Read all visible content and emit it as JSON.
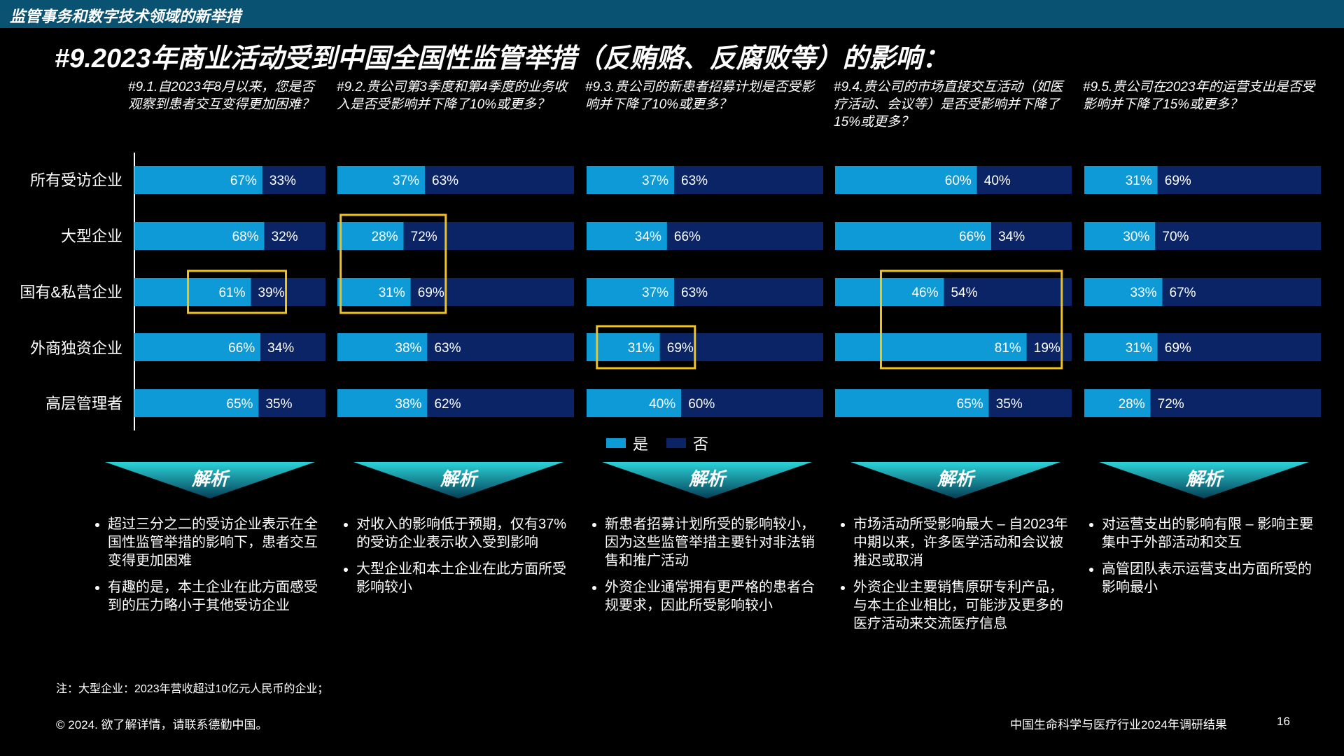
{
  "header": {
    "section_label": "监管事务和数字技术领域的新举措"
  },
  "page_title": "#9.2023年商业活动受到中国全国性监管举措（反贿赂、反腐败等）的影响：",
  "colors": {
    "yes": "#0e9ad7",
    "no": "#0b2466",
    "highlight": "#f0c21a",
    "topbar": "#0a5271"
  },
  "legend": {
    "yes": "是",
    "no": "否"
  },
  "chart_data": {
    "type": "bar",
    "stacked": true,
    "orientation": "horizontal",
    "categories": [
      "所有受访企业",
      "大型企业",
      "国有&私营企业",
      "外商独资企业",
      "高层管理者"
    ],
    "panels": [
      {
        "title": "#9.1.自2023年8月以来，您是否观察到患者交互变得更加困难？",
        "series": [
          {
            "name": "是",
            "values": [
              67,
              68,
              61,
              66,
              65
            ]
          },
          {
            "name": "否",
            "values": [
              33,
              32,
              39,
              34,
              35
            ]
          }
        ],
        "highlight_rows": [
          2
        ]
      },
      {
        "title": "#9.2.贵公司第3季度和第4季度的业务收入是否受影响并下降了10%或更多？",
        "series": [
          {
            "name": "是",
            "values": [
              37,
              28,
              31,
              38,
              38
            ]
          },
          {
            "name": "否",
            "values": [
              63,
              72,
              69,
              63,
              62
            ]
          }
        ],
        "highlight_rows": [
          1,
          2
        ]
      },
      {
        "title": "#9.3.贵公司的新患者招募计划是否受影响并下降了10%或更多？",
        "series": [
          {
            "name": "是",
            "values": [
              37,
              34,
              37,
              31,
              40
            ]
          },
          {
            "name": "否",
            "values": [
              63,
              66,
              63,
              69,
              60
            ]
          }
        ],
        "highlight_rows": [
          3
        ]
      },
      {
        "title": "#9.4.贵公司的市场直接交互活动（如医疗活动、会议等）是否受影响并下降了15%或更多？",
        "series": [
          {
            "name": "是",
            "values": [
              60,
              66,
              46,
              81,
              65
            ]
          },
          {
            "name": "否",
            "values": [
              40,
              34,
              54,
              19,
              35
            ]
          }
        ],
        "highlight_rows": [
          2,
          3
        ]
      },
      {
        "title": "#9.5.贵公司在2023年的运营支出是否受影响并下降了15%或更多？",
        "series": [
          {
            "name": "是",
            "values": [
              31,
              30,
              33,
              31,
              28
            ]
          },
          {
            "name": "否",
            "values": [
              69,
              70,
              67,
              69,
              72
            ]
          }
        ],
        "highlight_rows": []
      }
    ],
    "value_suffix": "%",
    "xlim": [
      0,
      100
    ]
  },
  "analysis": {
    "label": "解析",
    "columns": [
      [
        "超过三分之二的受访企业表示在全国性监管举措的影响下，患者交互变得更加困难",
        "有趣的是，本土企业在此方面感受到的压力略小于其他受访企业"
      ],
      [
        "对收入的影响低于预期，仅有37%的受访企业表示收入受到影响",
        "大型企业和本土企业在此方面所受影响较小"
      ],
      [
        "新患者招募计划所受的影响较小，因为这些监管举措主要针对非法销售和推广活动",
        "外资企业通常拥有更严格的患者合规要求，因此所受影响较小"
      ],
      [
        "市场活动所受影响最大 – 自2023年中期以来，许多医学活动和会议被推迟或取消",
        "外资企业主要销售原研专利产品，与本土企业相比，可能涉及更多的医疗活动来交流医疗信息"
      ],
      [
        "对运营支出的影响有限 – 影响主要集中于外部活动和交互",
        "高管团队表示运营支出方面所受的影响最小"
      ]
    ]
  },
  "note": "注：大型企业：2023年营收超过10亿元人民币的企业；",
  "footer": {
    "copyright": "© 2024. 欲了解详情，请联系德勤中国。",
    "title": "中国生命科学与医疗行业2024年调研结果",
    "page": "16"
  }
}
